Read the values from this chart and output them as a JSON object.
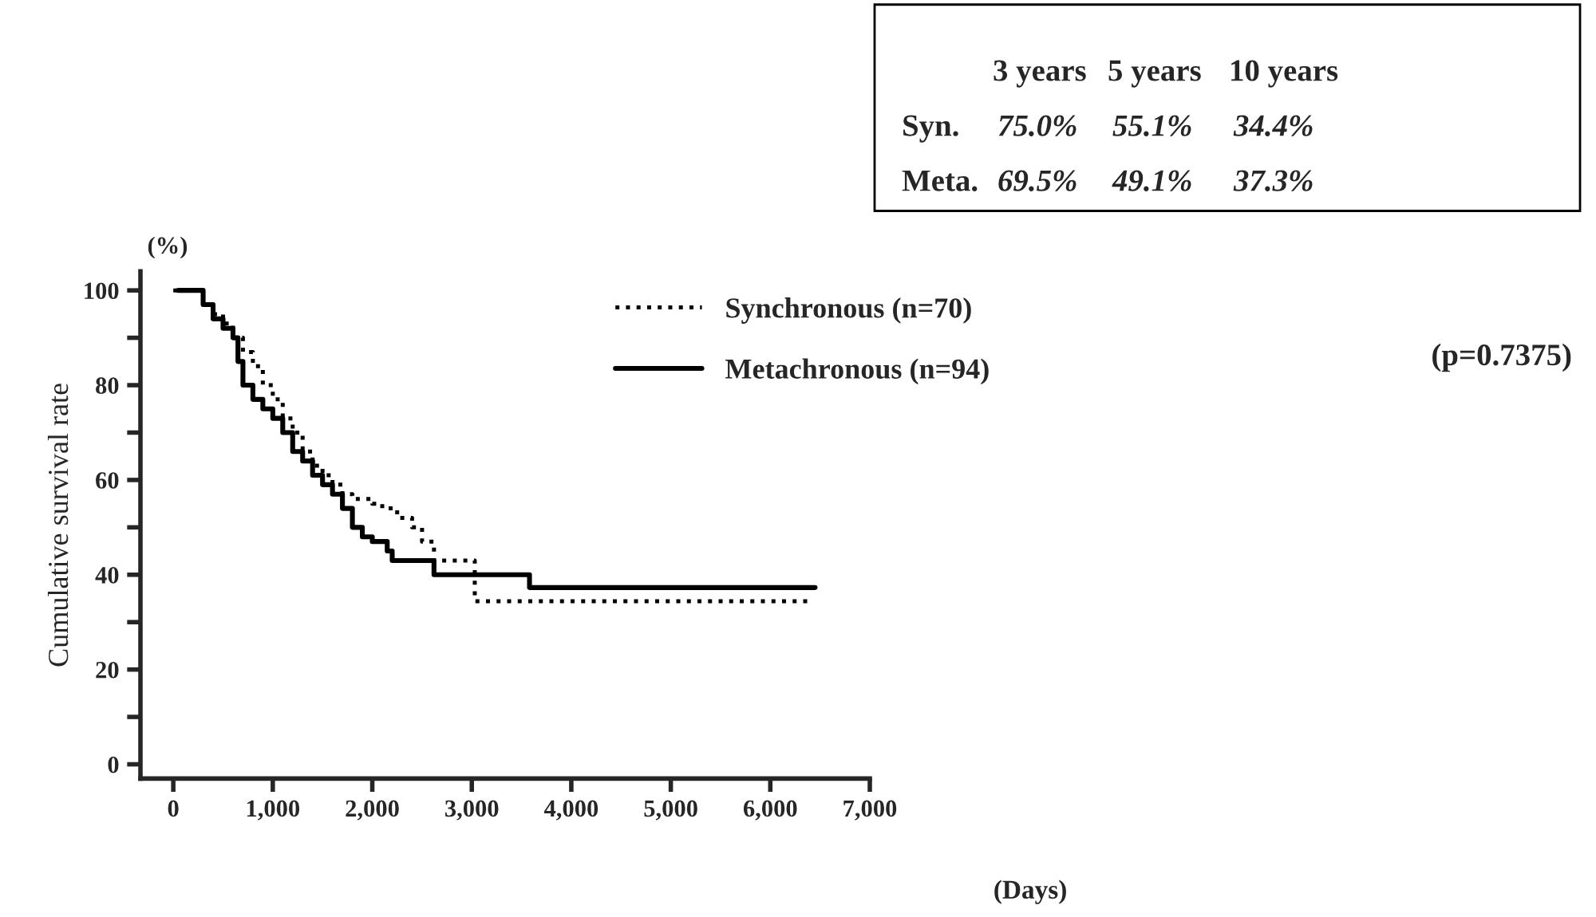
{
  "chart_data": {
    "type": "step",
    "ylabel": "Cumulative survival rate",
    "xlabel": "(Days)",
    "series": [
      {
        "name": "Synchronous (n=70)",
        "color": "#000000",
        "line_style": "dotted",
        "x": [
          0,
          250,
          300,
          400,
          500,
          600,
          700,
          800,
          900,
          1000,
          1100,
          1200,
          1300,
          1400,
          1500,
          1600,
          1700,
          1800,
          2000,
          2100,
          2250,
          2400,
          2500,
          2620,
          3030,
          6400
        ],
        "values": [
          100,
          100,
          97,
          95,
          93,
          90,
          87,
          84,
          80,
          77,
          73,
          70,
          66,
          63,
          61,
          59,
          57,
          56,
          55,
          54,
          52,
          50,
          47,
          43,
          34.4,
          34.4
        ]
      },
      {
        "name": "Metachronous (n=94)",
        "color": "#000000",
        "line_style": "solid",
        "x": [
          50,
          200,
          300,
          400,
          500,
          600,
          650,
          700,
          800,
          900,
          1000,
          1100,
          1200,
          1300,
          1400,
          1500,
          1600,
          1700,
          1800,
          1900,
          2000,
          2150,
          2200,
          2620,
          3580,
          6450
        ],
        "values": [
          100,
          100,
          97,
          94,
          92,
          90,
          85,
          80,
          77,
          75,
          73,
          70,
          66,
          64,
          61,
          59,
          57,
          54,
          50,
          48,
          47,
          45,
          43,
          40,
          37.3,
          37.3
        ]
      }
    ],
    "xlim": [
      -330,
      7000
    ],
    "ylim": [
      -3,
      104
    ],
    "xticks": [
      0,
      {
        "value": 1000,
        "label": "1,000"
      },
      {
        "value": 2000,
        "label": "2,000"
      },
      {
        "value": 3000,
        "label": "3,000"
      },
      {
        "value": 4000,
        "label": "4,000"
      },
      {
        "value": 5000,
        "label": "5,000"
      },
      {
        "value": 6000,
        "label": "6,000"
      },
      {
        "value": 7000,
        "label": "7,000"
      }
    ],
    "yticks": [
      0,
      {
        "value": 10,
        "label": null
      },
      20,
      {
        "value": 30,
        "label": null
      },
      40,
      {
        "value": 50,
        "label": null
      },
      60,
      {
        "value": 70,
        "label": null
      },
      80,
      {
        "value": 90,
        "label": null
      },
      100
    ],
    "grid": false,
    "legend": "top right",
    "annotations": [
      "3 years",
      "5 years",
      "10 years",
      "Syn.",
      "75.0%",
      "55.1%",
      "34.4%",
      "Meta.",
      "69.5%",
      "49.1%",
      "37.3%",
      "(p=0.7375)",
      "(%)"
    ]
  }
}
